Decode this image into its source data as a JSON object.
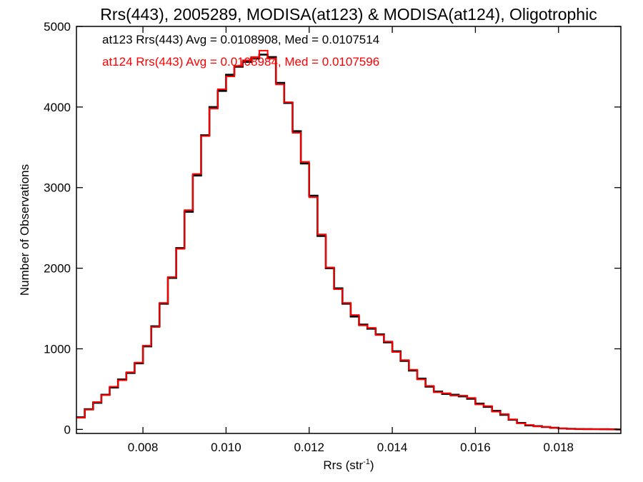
{
  "chart_data": {
    "type": "line",
    "step": true,
    "title": "Rrs(443), 2005289, MODISA(at123) & MODISA(at124), Oligotrophic",
    "xlabel_base": "Rrs (str",
    "xlabel_sup": "-1",
    "xlabel_close": ")",
    "ylabel": "Number of Observations",
    "xlim": [
      0.0064,
      0.0195
    ],
    "ylim": [
      -50,
      5000
    ],
    "xticks": [
      0.008,
      0.01,
      0.012,
      0.014,
      0.016,
      0.018
    ],
    "xtick_labels": [
      "0.008",
      "0.010",
      "0.012",
      "0.014",
      "0.016",
      "0.018"
    ],
    "yticks": [
      0,
      1000,
      2000,
      3000,
      4000,
      5000
    ],
    "ytick_labels": [
      "0",
      "1000",
      "2000",
      "3000",
      "4000",
      "5000"
    ],
    "x": [
      0.0064,
      0.0066,
      0.0068,
      0.007,
      0.0072,
      0.0074,
      0.0076,
      0.0078,
      0.008,
      0.0082,
      0.0084,
      0.0086,
      0.0088,
      0.009,
      0.0092,
      0.0094,
      0.0096,
      0.0098,
      0.01,
      0.0102,
      0.0104,
      0.0106,
      0.0108,
      0.011,
      0.0112,
      0.0114,
      0.0116,
      0.0118,
      0.012,
      0.0122,
      0.0124,
      0.0126,
      0.0128,
      0.013,
      0.0132,
      0.0134,
      0.0136,
      0.0138,
      0.014,
      0.0142,
      0.0144,
      0.0146,
      0.0148,
      0.015,
      0.0152,
      0.0154,
      0.0156,
      0.0158,
      0.016,
      0.0162,
      0.0164,
      0.0166,
      0.0168,
      0.017,
      0.0172,
      0.0174,
      0.0176,
      0.0178,
      0.018,
      0.0182,
      0.0184,
      0.0186,
      0.0188,
      0.019,
      0.0192,
      0.0194
    ],
    "series": [
      {
        "name": "at123",
        "color": "#000000",
        "values": [
          150,
          250,
          330,
          430,
          520,
          620,
          700,
          820,
          1030,
          1280,
          1560,
          1880,
          2250,
          2700,
          3150,
          3650,
          4000,
          4200,
          4400,
          4500,
          4560,
          4600,
          4650,
          4620,
          4300,
          4050,
          3700,
          3300,
          2900,
          2400,
          2000,
          1750,
          1560,
          1400,
          1300,
          1250,
          1180,
          1080,
          970,
          850,
          730,
          630,
          530,
          470,
          440,
          430,
          410,
          380,
          320,
          280,
          230,
          180,
          120,
          80,
          50,
          40,
          30,
          20,
          12,
          8,
          5,
          4,
          3,
          2,
          1,
          0
        ]
      },
      {
        "name": "at124",
        "color": "#ff0000",
        "values": [
          145,
          245,
          340,
          425,
          530,
          610,
          710,
          830,
          1040,
          1270,
          1570,
          1890,
          2240,
          2720,
          3170,
          3640,
          3980,
          4220,
          4380,
          4510,
          4580,
          4620,
          4700,
          4600,
          4280,
          4060,
          3680,
          3320,
          2880,
          2420,
          2010,
          1740,
          1570,
          1420,
          1290,
          1260,
          1170,
          1090,
          960,
          860,
          740,
          620,
          540,
          460,
          450,
          420,
          420,
          390,
          310,
          290,
          220,
          190,
          125,
          75,
          55,
          38,
          32,
          18,
          13,
          7,
          6,
          4,
          3,
          2,
          1,
          0
        ]
      }
    ],
    "annotations": [
      {
        "text": "at123 Rrs(443) Avg = 0.0108908, Med = 0.0107514",
        "color": "#000000"
      },
      {
        "text": "at124 Rrs(443) Avg = 0.0108984, Med = 0.0107596",
        "color": "#ff0000"
      }
    ],
    "grid": false,
    "legend": "top-left"
  }
}
